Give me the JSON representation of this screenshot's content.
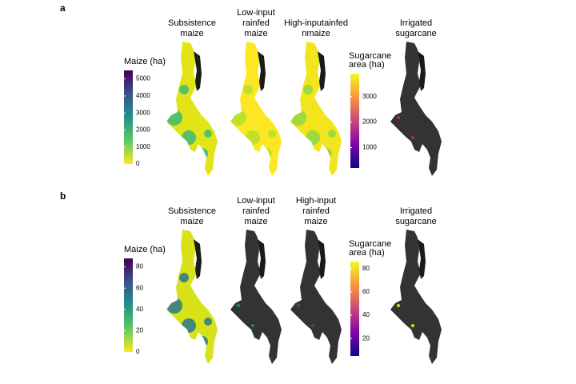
{
  "figure": {
    "rows": [
      {
        "label": "a",
        "columns": [
          {
            "title": [
              "Subsistence",
              "maize"
            ],
            "fill": "#e3e418",
            "patch": "#3bbb75"
          },
          {
            "title": [
              "Low-input",
              "rainfed",
              "maize"
            ],
            "fill": "#fde725",
            "patch": "#b5de2b"
          },
          {
            "title": [
              "High-inputainfed",
              "nmaize"
            ],
            "fill": "#f2e51d",
            "patch": "#8fd744"
          },
          {
            "title": [
              "Irrigated",
              "sugarcane"
            ],
            "fill": "#333333",
            "patch": "#b12a90"
          }
        ],
        "legends": [
          {
            "title": [
              "Maize (ha)"
            ],
            "colormap": "viridis_r",
            "lim": [
              0,
              5500
            ],
            "ticks": [
              0,
              1000,
              2000,
              3000,
              4000,
              5000
            ]
          },
          {
            "title": [
              "Sugarcane",
              "area (ha)"
            ],
            "colormap": "plasma",
            "lim": [
              200,
              3900
            ],
            "ticks": [
              1000,
              2000,
              3000
            ]
          }
        ]
      },
      {
        "label": "b",
        "columns": [
          {
            "title": [
              "Subsistence",
              "maize"
            ],
            "fill": "#d8e219",
            "patch": "#2a788e"
          },
          {
            "title": [
              "Low-input",
              "rainfed",
              "maize"
            ],
            "fill": "#333333",
            "patch": "#21918c"
          },
          {
            "title": [
              "High-input",
              "rainfed",
              "maize"
            ],
            "fill": "#333333",
            "patch": "#3b528b"
          },
          {
            "title": [
              "Irrigated",
              "sugarcane"
            ],
            "fill": "#333333",
            "patch": "#f0f921"
          }
        ],
        "legends": [
          {
            "title": [
              "Maize (ha)"
            ],
            "colormap": "viridis_r",
            "lim": [
              0,
              88
            ],
            "ticks": [
              0,
              20,
              40,
              60,
              80
            ]
          },
          {
            "title": [
              "Sugarcane",
              "area (ha)"
            ],
            "colormap": "plasma",
            "lim": [
              5,
              86
            ],
            "ticks": [
              20,
              40,
              60,
              80
            ]
          }
        ]
      }
    ]
  }
}
